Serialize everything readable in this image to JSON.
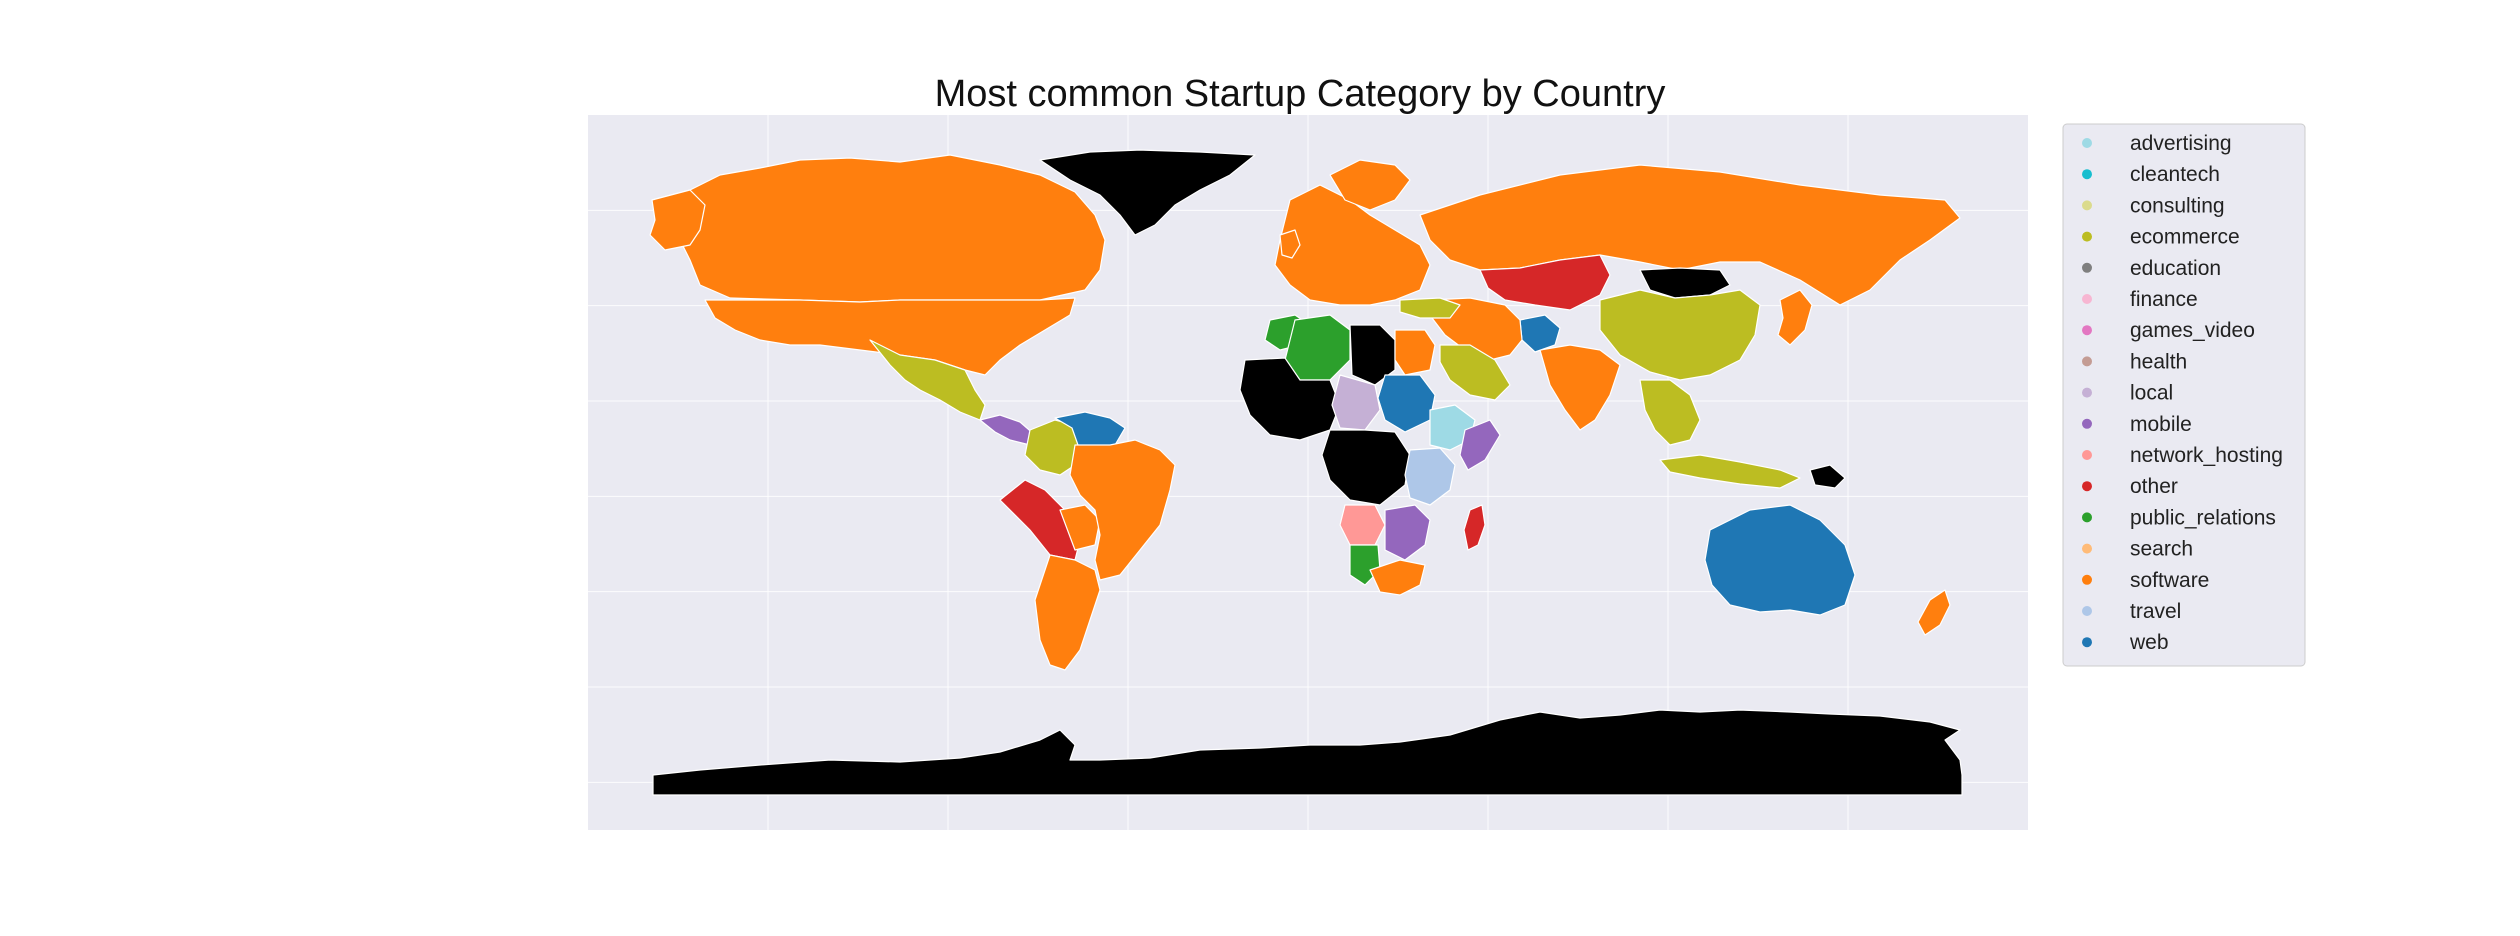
{
  "map": {
    "title": "Most common Startup Category by Country",
    "background_color": "#eaeaf2",
    "no_data_color": "#000000",
    "legend": {
      "placement": "right",
      "items": [
        {
          "label": "advertising",
          "color": "#9edae5"
        },
        {
          "label": "cleantech",
          "color": "#17becf"
        },
        {
          "label": "consulting",
          "color": "#dbdb8d"
        },
        {
          "label": "ecommerce",
          "color": "#bcbd22"
        },
        {
          "label": "education",
          "color": "#7f7f7f"
        },
        {
          "label": "finance",
          "color": "#f7b6d2"
        },
        {
          "label": "games_video",
          "color": "#e377c2"
        },
        {
          "label": "health",
          "color": "#c49c94"
        },
        {
          "label": "local",
          "color": "#c5b0d5"
        },
        {
          "label": "mobile",
          "color": "#9467bd"
        },
        {
          "label": "network_hosting",
          "color": "#ff9896"
        },
        {
          "label": "other",
          "color": "#d62728"
        },
        {
          "label": "public_relations",
          "color": "#2ca02c"
        },
        {
          "label": "search",
          "color": "#ffbb78"
        },
        {
          "label": "software",
          "color": "#ff7f0e"
        },
        {
          "label": "travel",
          "color": "#aec7e8"
        },
        {
          "label": "web",
          "color": "#1f77b4"
        }
      ]
    },
    "regions": [
      {
        "name": "Canada",
        "category": "software"
      },
      {
        "name": "United States",
        "category": "software"
      },
      {
        "name": "Greenland",
        "category": "no_data"
      },
      {
        "name": "Mexico",
        "category": "ecommerce"
      },
      {
        "name": "Brazil",
        "category": "software"
      },
      {
        "name": "Argentina",
        "category": "software"
      },
      {
        "name": "Peru",
        "category": "other"
      },
      {
        "name": "Colombia",
        "category": "ecommerce"
      },
      {
        "name": "Venezuela",
        "category": "web"
      },
      {
        "name": "Russia",
        "category": "software"
      },
      {
        "name": "Kazakhstan",
        "category": "other"
      },
      {
        "name": "Mongolia",
        "category": "no_data"
      },
      {
        "name": "China",
        "category": "ecommerce"
      },
      {
        "name": "India",
        "category": "software"
      },
      {
        "name": "Afghanistan",
        "category": "web"
      },
      {
        "name": "Saudi Arabia",
        "category": "ecommerce"
      },
      {
        "name": "Algeria",
        "category": "public_relations"
      },
      {
        "name": "Libya",
        "category": "no_data"
      },
      {
        "name": "Egypt",
        "category": "software"
      },
      {
        "name": "Sudan",
        "category": "web"
      },
      {
        "name": "Ethiopia",
        "category": "advertising"
      },
      {
        "name": "Angola",
        "category": "network_hosting"
      },
      {
        "name": "South Africa",
        "category": "software"
      },
      {
        "name": "Madagascar",
        "category": "other"
      },
      {
        "name": "Australia",
        "category": "web"
      },
      {
        "name": "Antarctica",
        "category": "no_data"
      }
    ]
  }
}
